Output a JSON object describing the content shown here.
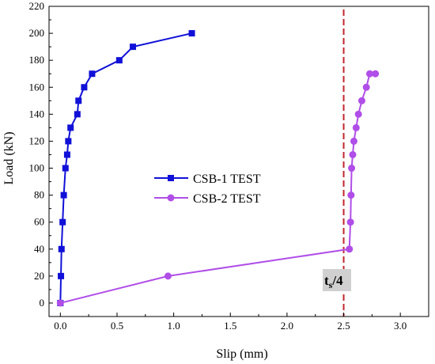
{
  "chart_data": {
    "type": "line",
    "title": "",
    "xlabel": "Slip (mm)",
    "ylabel": "Load (kN)",
    "xlim": [
      -0.1,
      3.25
    ],
    "ylim": [
      -10,
      220
    ],
    "xticks": [
      "0.0",
      "0.5",
      "1.0",
      "1.5",
      "2.0",
      "2.5",
      "3.0"
    ],
    "yticks": [
      "0",
      "20",
      "40",
      "60",
      "80",
      "100",
      "120",
      "140",
      "160",
      "180",
      "200",
      "220"
    ],
    "grid": false,
    "legend_position": "center",
    "series": [
      {
        "name": "CSB-1 TEST",
        "color": "#1010d8",
        "marker": "square",
        "x": [
          0.0,
          0.005,
          0.01,
          0.02,
          0.03,
          0.045,
          0.06,
          0.07,
          0.09,
          0.15,
          0.16,
          0.21,
          0.28,
          0.52,
          0.64,
          1.16
        ],
        "y": [
          0,
          20,
          40,
          60,
          80,
          100,
          110,
          120,
          130,
          140,
          150,
          160,
          170,
          180,
          190,
          200
        ]
      },
      {
        "name": "CSB-2 TEST",
        "color": "#b04ee8",
        "marker": "circle",
        "x": [
          0.0,
          0.95,
          2.55,
          2.56,
          2.565,
          2.57,
          2.58,
          2.59,
          2.61,
          2.63,
          2.66,
          2.7,
          2.73,
          2.78
        ],
        "y": [
          0,
          20,
          40,
          60,
          80,
          100,
          110,
          120,
          130,
          140,
          150,
          160,
          170,
          170
        ]
      }
    ],
    "reference_line": {
      "x": 2.5,
      "color": "#c0272d",
      "style": "dashed"
    },
    "annotation": {
      "label": "t",
      "subscript": "s",
      "suffix": "/4"
    }
  }
}
